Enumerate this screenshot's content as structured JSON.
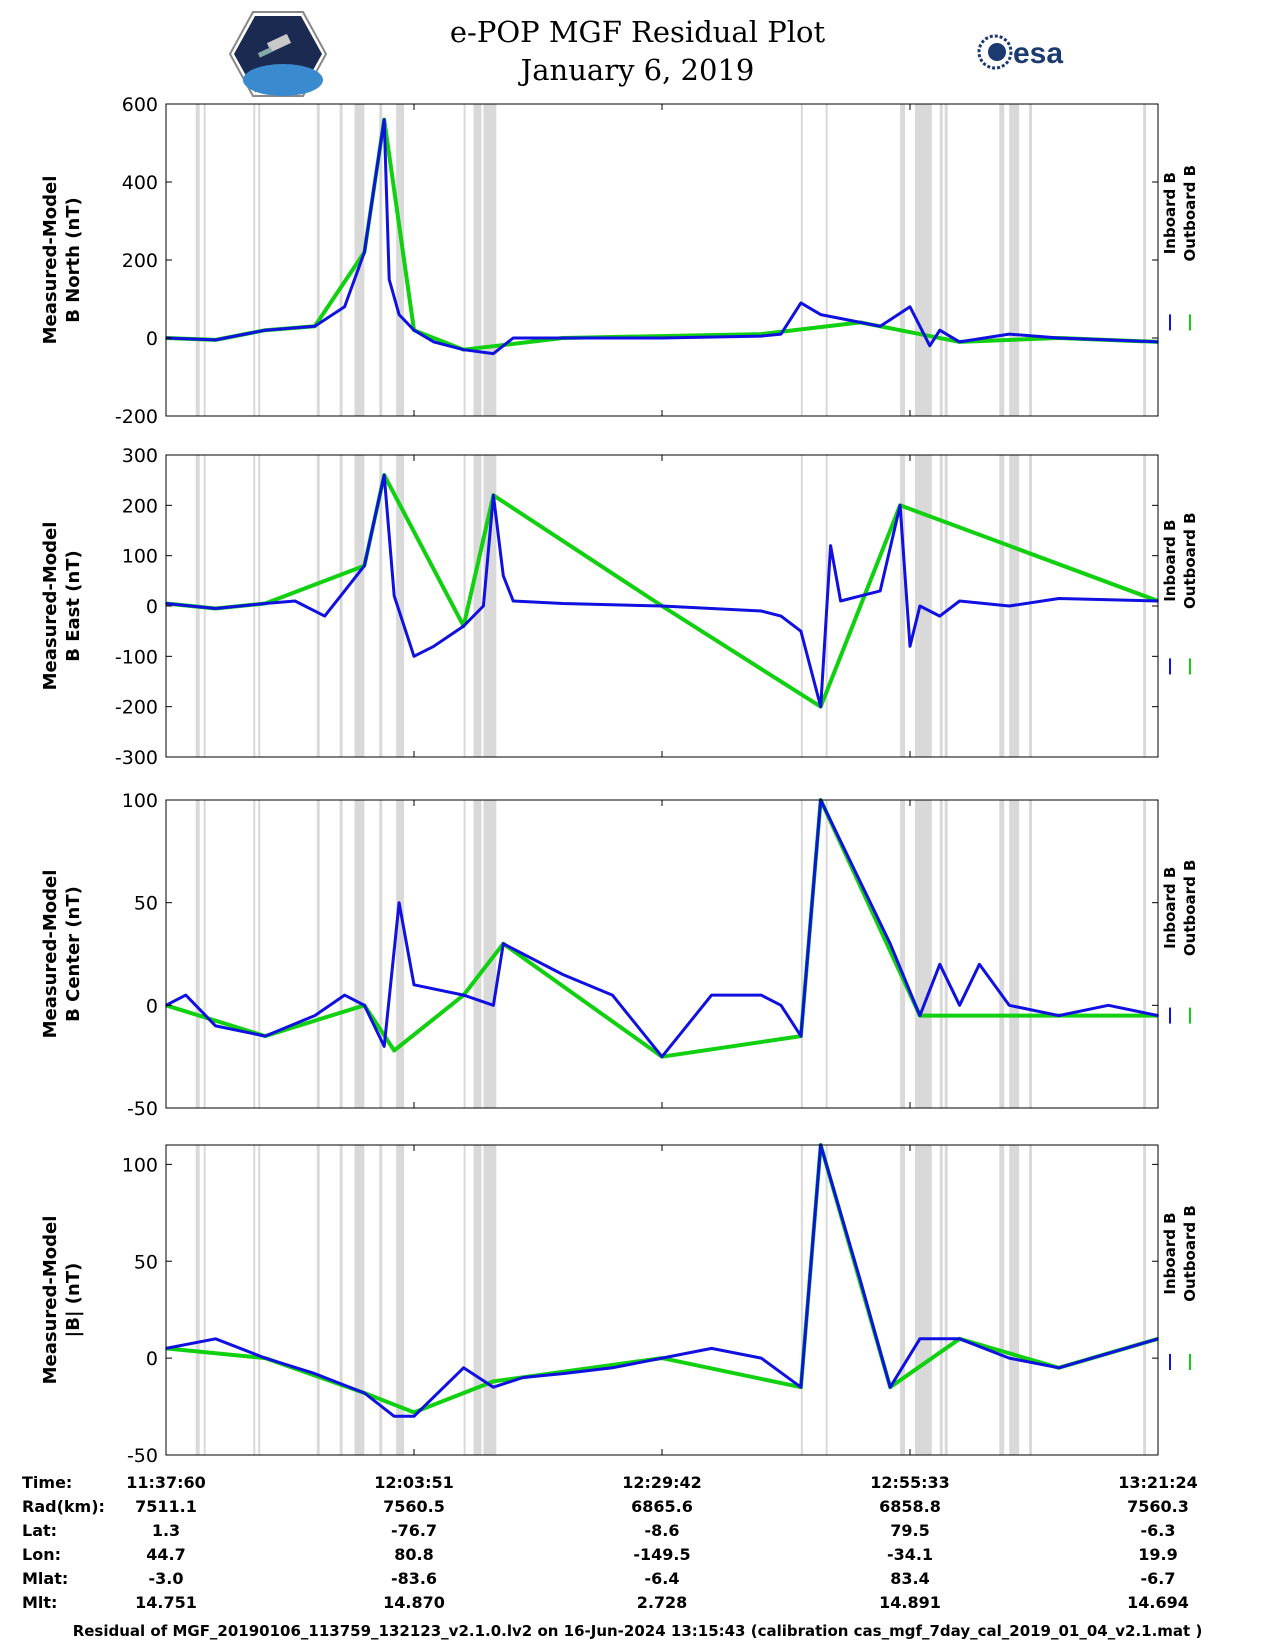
{
  "title_line1": "e-POP MGF Residual Plot",
  "title_line2": "January 6, 2019",
  "logo_right_text": "esa",
  "colors": {
    "inboard": "#1010e0",
    "outboard": "#10d010",
    "gap_shading": "#d9d9d9"
  },
  "chart_data": [
    {
      "type": "line",
      "ylabel_line1": "Measured-Model",
      "ylabel_line2": "B North (nT)",
      "ylim": [
        -200,
        600
      ],
      "yticks": [
        -200,
        0,
        200,
        400,
        600
      ],
      "legend": [
        "Inboard B",
        "Outboard B"
      ],
      "series": [
        {
          "name": "Inboard B",
          "x": [
            0,
            0.05,
            0.1,
            0.15,
            0.18,
            0.2,
            0.22,
            0.225,
            0.235,
            0.25,
            0.27,
            0.3,
            0.33,
            0.35,
            0.4,
            0.5,
            0.6,
            0.62,
            0.64,
            0.66,
            0.68,
            0.7,
            0.72,
            0.75,
            0.77,
            0.78,
            0.8,
            0.85,
            0.9,
            0.95,
            1
          ],
          "values": [
            0,
            -5,
            20,
            30,
            80,
            220,
            560,
            150,
            60,
            20,
            -10,
            -30,
            -40,
            0,
            0,
            0,
            5,
            10,
            90,
            60,
            50,
            40,
            30,
            80,
            -20,
            20,
            -10,
            10,
            0,
            -5,
            -10
          ]
        },
        {
          "name": "Outboard B",
          "x": [
            0,
            0.05,
            0.1,
            0.15,
            0.2,
            0.22,
            0.25,
            0.3,
            0.4,
            0.6,
            0.7,
            0.8,
            0.9,
            1
          ],
          "values": [
            0,
            -5,
            20,
            30,
            220,
            560,
            20,
            -30,
            0,
            10,
            40,
            -10,
            0,
            -10
          ]
        }
      ]
    },
    {
      "type": "line",
      "ylabel_line1": "Measured-Model",
      "ylabel_line2": "B East (nT)",
      "ylim": [
        -300,
        300
      ],
      "yticks": [
        -300,
        -200,
        -100,
        0,
        100,
        200,
        300
      ],
      "legend": [
        "Inboard B",
        "Outboard B"
      ],
      "series": [
        {
          "name": "Inboard B",
          "x": [
            0,
            0.05,
            0.1,
            0.13,
            0.16,
            0.18,
            0.2,
            0.22,
            0.23,
            0.25,
            0.27,
            0.3,
            0.32,
            0.33,
            0.34,
            0.35,
            0.4,
            0.5,
            0.6,
            0.62,
            0.64,
            0.66,
            0.67,
            0.68,
            0.7,
            0.72,
            0.74,
            0.75,
            0.76,
            0.78,
            0.8,
            0.85,
            0.9,
            1
          ],
          "values": [
            5,
            -5,
            5,
            10,
            -20,
            30,
            80,
            260,
            20,
            -100,
            -80,
            -40,
            0,
            220,
            60,
            10,
            5,
            0,
            -10,
            -20,
            -50,
            -200,
            120,
            10,
            20,
            30,
            200,
            -80,
            0,
            -20,
            10,
            0,
            15,
            10
          ]
        },
        {
          "name": "Outboard B",
          "x": [
            0,
            0.05,
            0.1,
            0.2,
            0.22,
            0.3,
            0.33,
            0.5,
            0.66,
            0.74,
            1
          ],
          "values": [
            5,
            -5,
            5,
            80,
            260,
            -40,
            220,
            0,
            -200,
            200,
            10
          ]
        }
      ]
    },
    {
      "type": "line",
      "ylabel_line1": "Measured-Model",
      "ylabel_line2": "B Center (nT)",
      "ylim": [
        -50,
        100
      ],
      "yticks": [
        -50,
        0,
        50,
        100
      ],
      "legend": [
        "Inboard B",
        "Outboard B"
      ],
      "series": [
        {
          "name": "Inboard B",
          "x": [
            0,
            0.02,
            0.05,
            0.1,
            0.15,
            0.18,
            0.2,
            0.22,
            0.235,
            0.25,
            0.3,
            0.33,
            0.34,
            0.4,
            0.45,
            0.5,
            0.55,
            0.6,
            0.62,
            0.64,
            0.66,
            0.7,
            0.73,
            0.76,
            0.78,
            0.8,
            0.82,
            0.85,
            0.9,
            0.95,
            1
          ],
          "values": [
            0,
            5,
            -10,
            -15,
            -5,
            5,
            0,
            -20,
            50,
            10,
            5,
            0,
            30,
            15,
            5,
            -25,
            5,
            5,
            0,
            -15,
            100,
            60,
            30,
            -5,
            20,
            0,
            20,
            0,
            -5,
            0,
            -5
          ]
        },
        {
          "name": "Outboard B",
          "x": [
            0,
            0.1,
            0.2,
            0.23,
            0.3,
            0.34,
            0.5,
            0.64,
            0.66,
            0.76,
            1
          ],
          "values": [
            0,
            -15,
            0,
            -22,
            5,
            30,
            -25,
            -15,
            100,
            -5,
            -5
          ]
        }
      ]
    },
    {
      "type": "line",
      "ylabel_line1": "Measured-Model",
      "ylabel_line2": "|B| (nT)",
      "ylim": [
        -50,
        110
      ],
      "yticks": [
        -50,
        0,
        50,
        100
      ],
      "legend": [
        "Inboard B",
        "Outboard B"
      ],
      "series": [
        {
          "name": "Inboard B",
          "x": [
            0,
            0.05,
            0.1,
            0.15,
            0.2,
            0.23,
            0.25,
            0.3,
            0.33,
            0.36,
            0.4,
            0.45,
            0.5,
            0.55,
            0.6,
            0.64,
            0.66,
            0.7,
            0.73,
            0.76,
            0.8,
            0.85,
            0.9,
            1
          ],
          "values": [
            5,
            10,
            0,
            -8,
            -18,
            -30,
            -30,
            -5,
            -15,
            -10,
            -8,
            -5,
            0,
            5,
            0,
            -15,
            110,
            40,
            -15,
            10,
            10,
            0,
            -5,
            10
          ]
        },
        {
          "name": "Outboard B",
          "x": [
            0,
            0.1,
            0.2,
            0.25,
            0.33,
            0.5,
            0.64,
            0.66,
            0.73,
            0.8,
            0.9,
            1
          ],
          "values": [
            5,
            0,
            -18,
            -28,
            -12,
            0,
            -15,
            110,
            -15,
            10,
            -5,
            10
          ]
        }
      ]
    }
  ],
  "x_axis_ticks": [
    "11:37:60",
    "12:03:51",
    "12:29:42",
    "12:55:33",
    "13:21:24"
  ],
  "table": {
    "labels": [
      "Time:",
      "Rad(km):",
      "Lat:",
      "Lon:",
      "Mlat:",
      "Mlt:"
    ],
    "columns": [
      [
        "11:37:60",
        "7511.1",
        "1.3",
        "44.7",
        "-3.0",
        "14.751"
      ],
      [
        "12:03:51",
        "7560.5",
        "-76.7",
        "80.8",
        "-83.6",
        "14.870"
      ],
      [
        "12:29:42",
        "6865.6",
        "-8.6",
        "-149.5",
        "-6.4",
        "2.728"
      ],
      [
        "12:55:33",
        "6858.8",
        "79.5",
        "-34.1",
        "83.4",
        "14.891"
      ],
      [
        "13:21:24",
        "7560.3",
        "-6.3",
        "19.9",
        "-6.7",
        "14.694"
      ]
    ]
  },
  "footer": "Residual of MGF_20190106_113759_132123_v2.1.0.lv2 on 16-Jun-2024 13:15:43 (calibration cas_mgf_7day_cal_2019_01_04_v2.1.mat )"
}
